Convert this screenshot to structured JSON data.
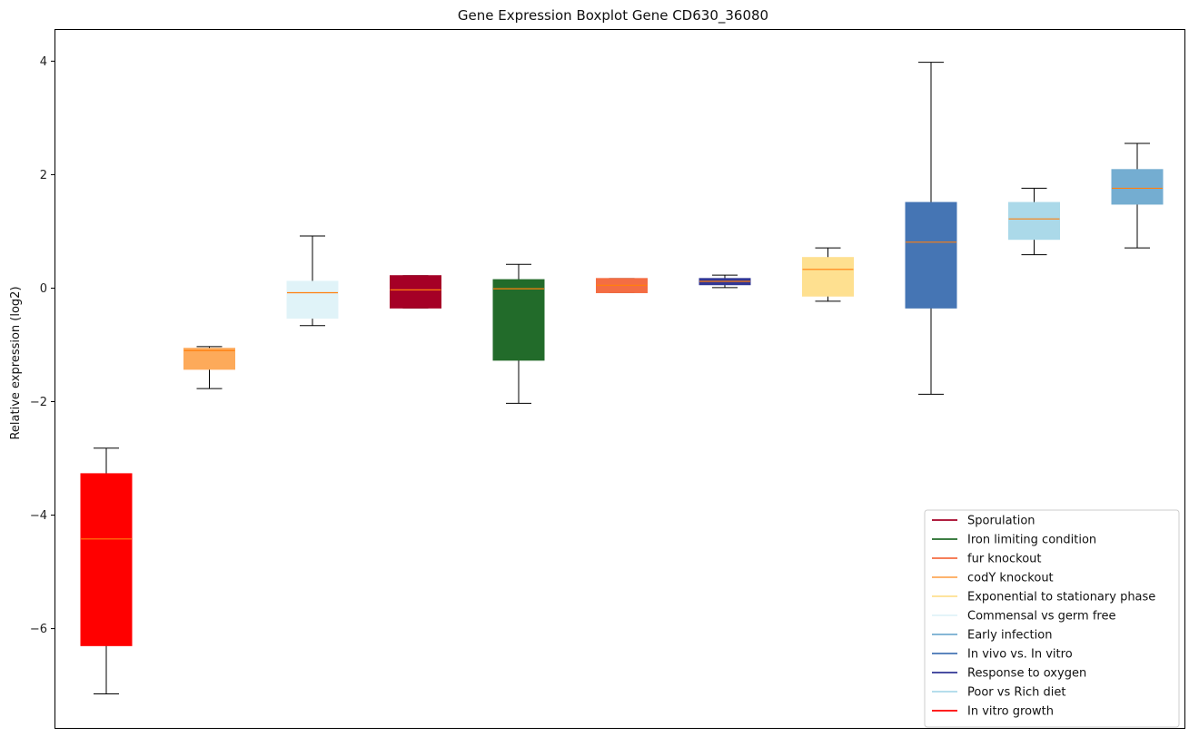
{
  "chart_data": {
    "type": "boxplot",
    "title": "Gene Expression Boxplot Gene CD630_36080",
    "xlabel": "",
    "ylabel": "Relative expression (log2)",
    "ylim": [
      -7.75,
      4.55
    ],
    "yticks": [
      -6,
      -4,
      -2,
      0,
      2,
      4
    ],
    "grid": false,
    "legend_position": "lower-right",
    "median_color": "#ff7f0e",
    "boxes": [
      {
        "series": "In vitro growth",
        "color": "#ff0000",
        "whisker_low": -7.15,
        "q1": -6.3,
        "median": -4.42,
        "q3": -3.27,
        "whisker_high": -2.82
      },
      {
        "series": "codY knockout",
        "color": "#fdaa5a",
        "whisker_low": -1.77,
        "q1": -1.43,
        "median": -1.1,
        "q3": -1.06,
        "whisker_high": -1.03
      },
      {
        "series": "Commensal vs germ free",
        "color": "#e0f3f8",
        "whisker_low": -0.66,
        "q1": -0.53,
        "median": -0.08,
        "q3": 0.12,
        "whisker_high": 0.92
      },
      {
        "series": "Sporulation",
        "color": "#a50026",
        "whisker_low": -0.35,
        "q1": -0.35,
        "median": -0.03,
        "q3": 0.22,
        "whisker_high": 0.22
      },
      {
        "series": "Iron limiting condition",
        "color": "#226b2a",
        "whisker_low": -2.03,
        "q1": -1.27,
        "median": -0.01,
        "q3": 0.15,
        "whisker_high": 0.42
      },
      {
        "series": "fur knockout",
        "color": "#f46d43",
        "whisker_low": -0.08,
        "q1": -0.08,
        "median": 0.05,
        "q3": 0.17,
        "whisker_high": 0.17
      },
      {
        "series": "Response to oxygen",
        "color": "#313695",
        "whisker_low": 0.01,
        "q1": 0.06,
        "median": 0.12,
        "q3": 0.17,
        "whisker_high": 0.23
      },
      {
        "series": "Exponential to stationary phase",
        "color": "#fee090",
        "whisker_low": -0.23,
        "q1": -0.14,
        "median": 0.33,
        "q3": 0.54,
        "whisker_high": 0.71
      },
      {
        "series": "In vivo vs. In vitro",
        "color": "#4575b4",
        "whisker_low": -1.87,
        "q1": -0.35,
        "median": 0.81,
        "q3": 1.51,
        "whisker_high": 3.98
      },
      {
        "series": "Poor vs Rich diet",
        "color": "#abd9e9",
        "whisker_low": 0.59,
        "q1": 0.86,
        "median": 1.22,
        "q3": 1.51,
        "whisker_high": 1.76
      },
      {
        "series": "Early infection",
        "color": "#74add1",
        "whisker_low": 0.71,
        "q1": 1.48,
        "median": 1.76,
        "q3": 2.09,
        "whisker_high": 2.55
      }
    ],
    "legend": [
      {
        "name": "Sporulation",
        "color": "#a50026"
      },
      {
        "name": "Iron limiting condition",
        "color": "#226b2a"
      },
      {
        "name": "fur knockout",
        "color": "#f46d43"
      },
      {
        "name": "codY knockout",
        "color": "#fdaa5a"
      },
      {
        "name": "Exponential to stationary phase",
        "color": "#fee090"
      },
      {
        "name": "Commensal vs germ free",
        "color": "#e0f3f8"
      },
      {
        "name": "Early infection",
        "color": "#74add1"
      },
      {
        "name": "In vivo vs. In vitro",
        "color": "#4575b4"
      },
      {
        "name": "Response to oxygen",
        "color": "#313695"
      },
      {
        "name": "Poor vs Rich diet",
        "color": "#abd9e9"
      },
      {
        "name": "In vitro growth",
        "color": "#ff0000"
      }
    ]
  }
}
